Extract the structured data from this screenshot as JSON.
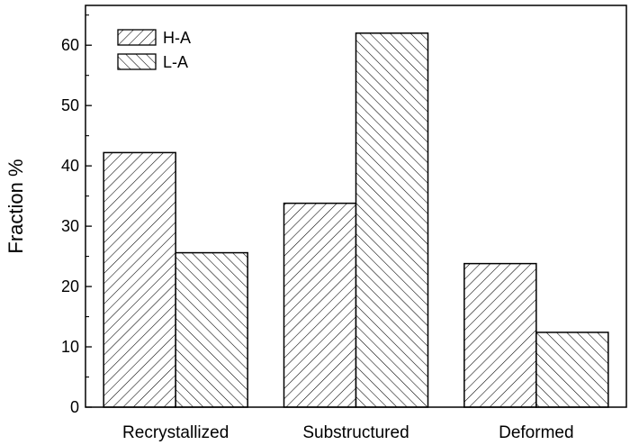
{
  "chart_data": {
    "type": "bar",
    "title": "",
    "xlabel": "",
    "ylabel": "Fraction %",
    "categories": [
      "Recrystallized",
      "Substructured",
      "Deformed"
    ],
    "series": [
      {
        "name": "H-A",
        "values": [
          42.2,
          33.8,
          23.8
        ],
        "pattern": "hatch-forward"
      },
      {
        "name": "L-A",
        "values": [
          25.6,
          62.0,
          12.4
        ],
        "pattern": "hatch-backward"
      }
    ],
    "ylim": [
      0,
      66.6
    ],
    "yticks": [
      0,
      10,
      20,
      30,
      40,
      50,
      60
    ],
    "ytick_labels": [
      "0",
      "10",
      "20",
      "30",
      "40",
      "50",
      "60"
    ],
    "grid": false,
    "legend_position": "top-left",
    "colors": {
      "bar_fill": "#ffffff",
      "hatch": "#000000",
      "axes": "#000000"
    }
  }
}
